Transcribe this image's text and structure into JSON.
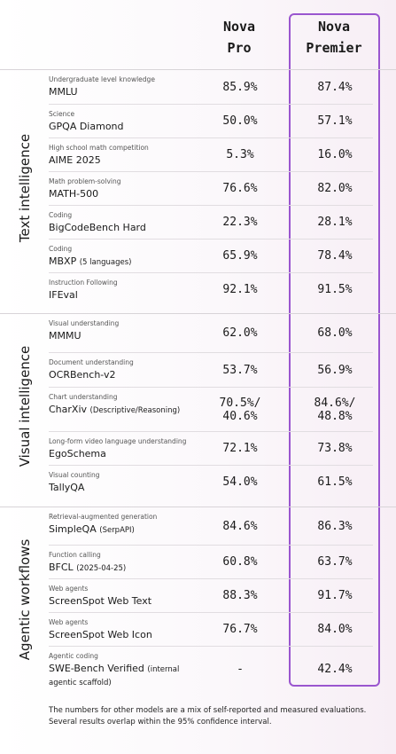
{
  "header": {
    "columns": [
      "Nova Pro",
      "Nova Premier"
    ]
  },
  "sections": [
    {
      "title": "Text intelligence",
      "rows": [
        {
          "category": "Undergraduate level knowledge",
          "name": "MMLU",
          "values": [
            "85.9%",
            "87.4%"
          ]
        },
        {
          "category": "Science",
          "name": "GPQA Diamond",
          "values": [
            "50.0%",
            "57.1%"
          ]
        },
        {
          "category": "High school math competition",
          "name": "AIME 2025",
          "values": [
            "5.3%",
            "16.0%"
          ]
        },
        {
          "category": "Math problem-solving",
          "name": "MATH-500",
          "values": [
            "76.6%",
            "82.0%"
          ]
        },
        {
          "category": "Coding",
          "name": "BigCodeBench Hard",
          "values": [
            "22.3%",
            "28.1%"
          ]
        },
        {
          "category": "Coding",
          "name": "MBXP",
          "note": "(5 languages)",
          "values": [
            "65.9%",
            "78.4%"
          ]
        },
        {
          "category": "Instruction Following",
          "name": "IFEval",
          "values": [
            "92.1%",
            "91.5%"
          ]
        }
      ]
    },
    {
      "title": "Visual intelligence",
      "rows": [
        {
          "category": "Visual understanding",
          "name": "MMMU",
          "values": [
            "62.0%",
            "68.0%"
          ]
        },
        {
          "category": "Document understanding",
          "name": "OCRBench-v2",
          "values": [
            "53.7%",
            "56.9%"
          ]
        },
        {
          "category": "Chart understanding",
          "name": "CharXiv",
          "note": "(Descriptive/Reasoning)",
          "values": [
            "70.5%/ 40.6%",
            "84.6%/ 48.8%"
          ]
        },
        {
          "category": "Long-form video language understanding",
          "name": "EgoSchema",
          "values": [
            "72.1%",
            "73.8%"
          ]
        },
        {
          "category": "Visual counting",
          "name": "TallyQA",
          "values": [
            "54.0%",
            "61.5%"
          ]
        }
      ]
    },
    {
      "title": "Agentic workflows",
      "rows": [
        {
          "category": "Retrieval-augmented generation",
          "name": "SimpleQA",
          "note": "(SerpAPI)",
          "values": [
            "84.6%",
            "86.3%"
          ]
        },
        {
          "category": "Function calling",
          "name": "BFCL",
          "note": "(2025-04-25)",
          "values": [
            "60.8%",
            "63.7%"
          ]
        },
        {
          "category": "Web agents",
          "name": "ScreenSpot Web Text",
          "values": [
            "88.3%",
            "91.7%"
          ]
        },
        {
          "category": "Web agents",
          "name": "ScreenSpot Web Icon",
          "values": [
            "76.7%",
            "84.0%"
          ]
        },
        {
          "category": "Agentic coding",
          "name": "SWE-Bench Verified",
          "note": "(internal agentic scaffold)",
          "values": [
            "-",
            "42.4%"
          ]
        }
      ]
    }
  ],
  "footnote": "The numbers for other models are a mix of self-reported and measured evaluations. Several results overlap within the 95% confidence interval."
}
